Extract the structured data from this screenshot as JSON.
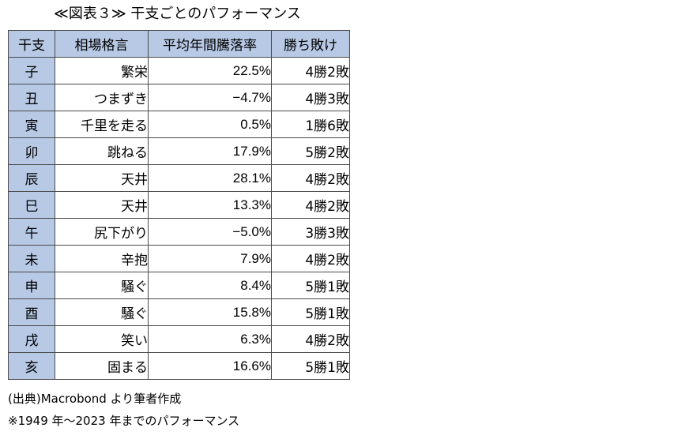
{
  "title": "≪図表３≫ 干支ごとのパフォーマンス",
  "table": {
    "headers": [
      "干支",
      "相場格言",
      "平均年間騰落率",
      "勝ち敗け"
    ],
    "rows": [
      {
        "eto": "子",
        "saying": "繁栄",
        "rate": "22.5%",
        "wl": "4勝2敗"
      },
      {
        "eto": "丑",
        "saying": "つまずき",
        "rate": "−4.7%",
        "wl": "4勝3敗"
      },
      {
        "eto": "寅",
        "saying": "千里を走る",
        "rate": "0.5%",
        "wl": "1勝6敗"
      },
      {
        "eto": "卯",
        "saying": "跳ねる",
        "rate": "17.9%",
        "wl": "5勝2敗"
      },
      {
        "eto": "辰",
        "saying": "天井",
        "rate": "28.1%",
        "wl": "4勝2敗"
      },
      {
        "eto": "巳",
        "saying": "天井",
        "rate": "13.3%",
        "wl": "4勝2敗"
      },
      {
        "eto": "午",
        "saying": "尻下がり",
        "rate": "−5.0%",
        "wl": "3勝3敗"
      },
      {
        "eto": "未",
        "saying": "辛抱",
        "rate": "7.9%",
        "wl": "4勝2敗"
      },
      {
        "eto": "申",
        "saying": "騒ぐ",
        "rate": "8.4%",
        "wl": "5勝1敗"
      },
      {
        "eto": "酉",
        "saying": "騒ぐ",
        "rate": "15.8%",
        "wl": "5勝1敗"
      },
      {
        "eto": "戌",
        "saying": "笑い",
        "rate": "6.3%",
        "wl": "4勝2敗"
      },
      {
        "eto": "亥",
        "saying": "固まる",
        "rate": "16.6%",
        "wl": "5勝1敗"
      }
    ]
  },
  "notes": {
    "source": "(出典)Macrobond より筆者作成",
    "period": "※1949 年～2023 年までのパフォーマンス"
  },
  "colors": {
    "header_fill": "#b7c9e5",
    "border": "#4a4a4a"
  }
}
